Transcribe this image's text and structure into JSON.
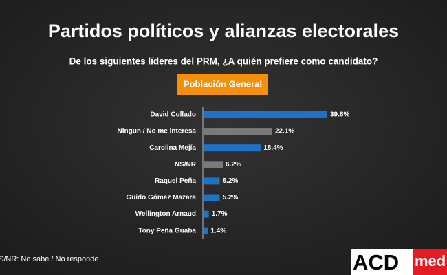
{
  "chart_data": {
    "type": "hbar",
    "title": "Partidos políticos y alianzas electorales",
    "subtitle": "De los siguientes líderes del PRM, ¿A quién prefiere como candidato?",
    "badge": "Población General",
    "footnote": "S/NR: No sabe / No responde",
    "logo": [
      "ACD",
      "med"
    ],
    "categories": [
      "David Collado",
      "Ningun / No me interesa",
      "Carolina Mejía",
      "NS/NR",
      "Raquel Peña",
      "Guido Gómez Mazara",
      "Wellington Arnaud",
      "Tony Peña Guaba"
    ],
    "values": [
      39.8,
      22.1,
      18.4,
      6.2,
      5.2,
      5.2,
      1.7,
      1.4
    ],
    "value_labels": [
      "39.8%",
      "22.1%",
      "18.4%",
      "6.2%",
      "5.2%",
      "5.2%",
      "1.7%",
      "1.4%"
    ],
    "colors": [
      "#1f72c8",
      "#7a7a7a",
      "#1f72c8",
      "#7a7a7a",
      "#1f72c8",
      "#1f72c8",
      "#1f72c8",
      "#1f72c8"
    ]
  }
}
